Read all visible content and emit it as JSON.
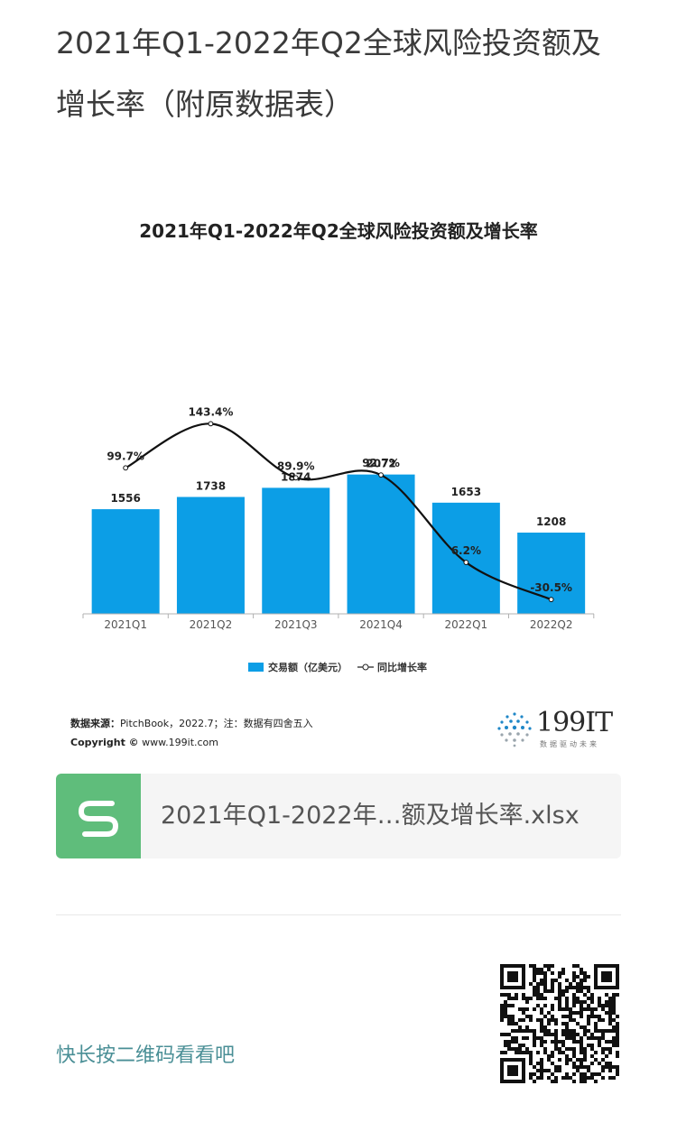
{
  "article": {
    "title": "2021年Q1-2022年Q2全球风险投资额及增长率（附原数据表）"
  },
  "chart_data": {
    "type": "bar",
    "title": "2021年Q1-2022年Q2全球风险投资额及增长率",
    "categories": [
      "2021Q1",
      "2021Q2",
      "2021Q3",
      "2021Q4",
      "2022Q1",
      "2022Q2"
    ],
    "series": [
      {
        "name": "交易额（亿美元）",
        "type": "bar",
        "values": [
          1556,
          1738,
          1874,
          2072,
          1653,
          1208
        ],
        "labels": [
          "1556",
          "1738",
          "1874",
          "2072",
          "1653",
          "1208"
        ],
        "color": "#0c9ee6"
      },
      {
        "name": "同比增长率",
        "type": "line",
        "values": [
          99.7,
          143.4,
          89.9,
          92.7,
          6.2,
          -30.5
        ],
        "labels": [
          "99.7%",
          "143.4%",
          "89.9%",
          "92.7%",
          "6.2%",
          "-30.5%"
        ],
        "color": "#111111"
      }
    ],
    "legend_position": "bottom",
    "grid": false
  },
  "source": {
    "label": "数据来源：",
    "text": "PitchBook，2022.7；注：数据有四舍五入",
    "copyright_label": "Copyright ©",
    "copyright_site": "www.199it.com"
  },
  "logo": {
    "name": "199IT",
    "tagline": "数据驱动未来"
  },
  "attachment": {
    "icon": "spreadsheet-s-icon",
    "file_name": "2021年Q1-2022年…额及增长率.xlsx",
    "color": "#5fbd7b"
  },
  "footer": {
    "qr_hint": "快长按二维码看看吧",
    "qr_icon": "qr-code-icon"
  }
}
